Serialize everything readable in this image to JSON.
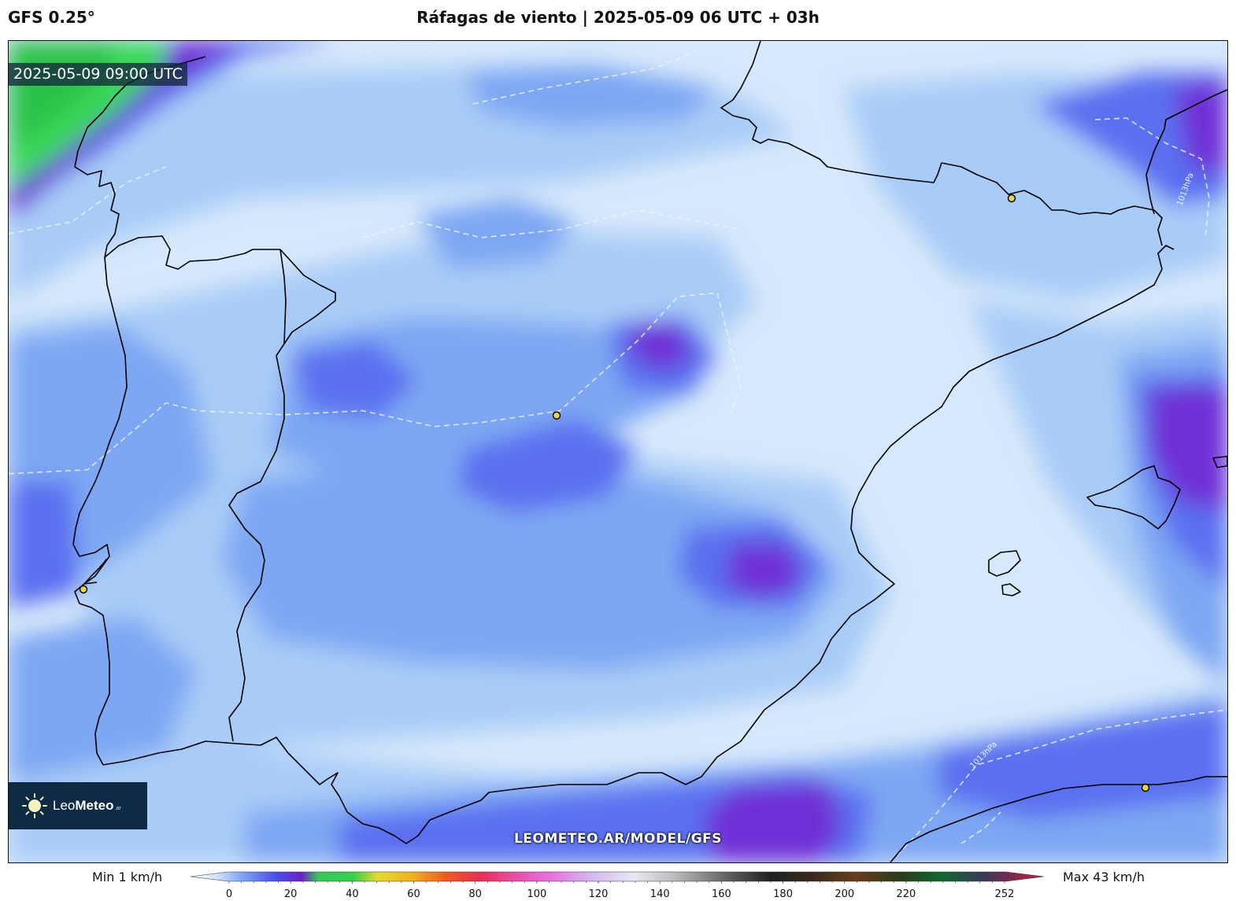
{
  "header": {
    "model": "GFS 0.25°",
    "title": "Ráfagas de viento | 2025-05-09 06 UTC + 03h"
  },
  "map": {
    "valid_time": "2025-05-09 09:00 UTC",
    "watermark": "LEOMETEO.AR/MODEL/GFS",
    "isobar_label": "1013hPa",
    "city_marker_color": "#e8d44d",
    "coastline_color": "#000000"
  },
  "logo": {
    "name_light": "Leo",
    "name_bold": "Meteo",
    "suffix": ".ar"
  },
  "legend": {
    "min_label": "Min 1 km/h",
    "max_label": "Max 43 km/h",
    "ticks": [
      "0",
      "20",
      "40",
      "60",
      "80",
      "100",
      "120",
      "140",
      "160",
      "180",
      "200",
      "220",
      "252"
    ],
    "unit": "km/h"
  },
  "colors": {
    "very_light": "#d6e8fb",
    "light": "#a9ccf7",
    "mid": "#7ea7f3",
    "strong": "#5a6ff0",
    "purple": "#6f2fd6",
    "green": "#37d957"
  }
}
